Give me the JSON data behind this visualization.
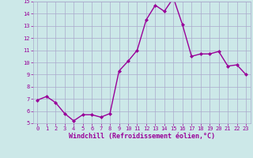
{
  "x": [
    0,
    1,
    2,
    3,
    4,
    5,
    6,
    7,
    8,
    9,
    10,
    11,
    12,
    13,
    14,
    15,
    16,
    17,
    18,
    19,
    20,
    21,
    22,
    23
  ],
  "y": [
    6.9,
    7.2,
    6.7,
    5.8,
    5.2,
    5.7,
    5.7,
    5.5,
    5.8,
    9.3,
    10.1,
    11.0,
    13.5,
    14.7,
    14.2,
    15.3,
    13.1,
    10.5,
    10.7,
    10.7,
    10.9,
    9.7,
    9.8,
    9.0
  ],
  "line_color": "#990099",
  "marker": "D",
  "marker_size": 2,
  "bg_color": "#cce8e8",
  "grid_color": "#aaaacc",
  "xlabel": "Windchill (Refroidissement éolien,°C)",
  "xlabel_color": "#990099",
  "tick_color": "#990099",
  "ylim": [
    5,
    15
  ],
  "xlim": [
    -0.5,
    23.5
  ],
  "yticks": [
    5,
    6,
    7,
    8,
    9,
    10,
    11,
    12,
    13,
    14,
    15
  ],
  "xticks": [
    0,
    1,
    2,
    3,
    4,
    5,
    6,
    7,
    8,
    9,
    10,
    11,
    12,
    13,
    14,
    15,
    16,
    17,
    18,
    19,
    20,
    21,
    22,
    23
  ],
  "tick_fontsize": 5,
  "xlabel_fontsize": 6,
  "linewidth": 1.0
}
